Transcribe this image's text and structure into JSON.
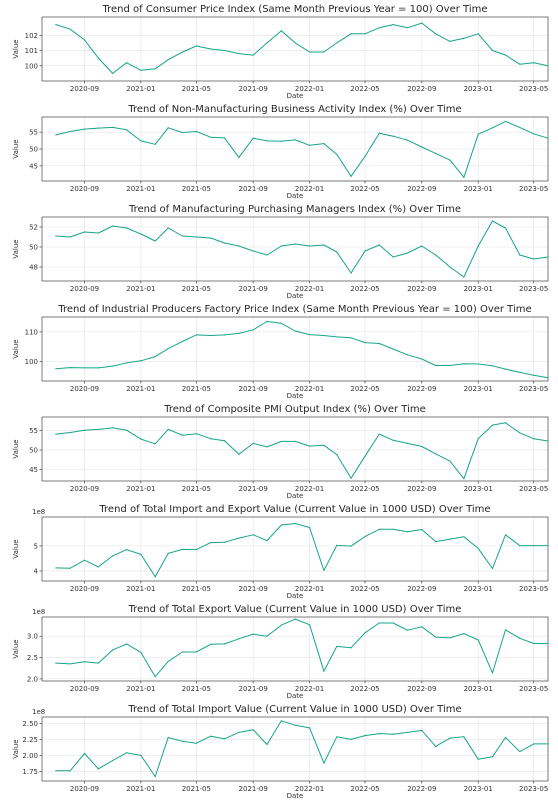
{
  "style": {
    "line_color": "#17a589",
    "grid_color": "#e3e3e3"
  },
  "chart_data": [
    {
      "type": "line",
      "title": "Trend of Consumer Price Index (Same Month Previous Year = 100) Over Time",
      "xlabel": "Date",
      "ylabel": "Value",
      "grid": true,
      "xlim": [
        "2020-06-01",
        "2023-06-01"
      ],
      "ylim": [
        99.0,
        103.2
      ],
      "yticks": [
        100,
        101,
        102
      ],
      "ytick_labels": [
        "100",
        "101",
        "102"
      ],
      "xticks": [
        "2020-09-01",
        "2021-01-01",
        "2021-05-01",
        "2021-09-01",
        "2022-01-01",
        "2022-05-01",
        "2022-09-01",
        "2023-01-01",
        "2023-05-01"
      ],
      "xtick_labels": [
        "2020-09",
        "2021-01",
        "2021-05",
        "2021-09",
        "2022-01",
        "2022-05",
        "2022-09",
        "2023-01",
        "2023-05"
      ],
      "axis_multiplier": "",
      "x": [
        "2020-07",
        "2020-08",
        "2020-09",
        "2020-10",
        "2020-11",
        "2020-12",
        "2021-01",
        "2021-02",
        "2021-03",
        "2021-04",
        "2021-05",
        "2021-06",
        "2021-07",
        "2021-08",
        "2021-09",
        "2021-10",
        "2021-11",
        "2021-12",
        "2022-01",
        "2022-02",
        "2022-03",
        "2022-04",
        "2022-05",
        "2022-06",
        "2022-07",
        "2022-08",
        "2022-09",
        "2022-10",
        "2022-11",
        "2022-12",
        "2023-01",
        "2023-02",
        "2023-03",
        "2023-04",
        "2023-05",
        "2023-06"
      ],
      "values": [
        102.7,
        102.4,
        101.7,
        100.5,
        99.5,
        100.2,
        99.7,
        99.8,
        100.4,
        100.9,
        101.3,
        101.1,
        101.0,
        100.8,
        100.7,
        101.5,
        102.3,
        101.5,
        100.9,
        100.9,
        101.5,
        102.1,
        102.1,
        102.5,
        102.7,
        102.5,
        102.8,
        102.1,
        101.6,
        101.8,
        102.1,
        101.0,
        100.7,
        100.1,
        100.2,
        100.0
      ]
    },
    {
      "type": "line",
      "title": "Trend of Non-Manufacturing Business Activity Index (%) Over Time",
      "xlabel": "Date",
      "ylabel": "Value",
      "grid": true,
      "xlim": [
        "2020-06-01",
        "2023-06-01"
      ],
      "ylim": [
        40.5,
        59.5
      ],
      "yticks": [
        45,
        50,
        55
      ],
      "ytick_labels": [
        "45",
        "50",
        "55"
      ],
      "xticks": [
        "2020-09-01",
        "2021-01-01",
        "2021-05-01",
        "2021-09-01",
        "2022-01-01",
        "2022-05-01",
        "2022-09-01",
        "2023-01-01",
        "2023-05-01"
      ],
      "xtick_labels": [
        "2020-09",
        "2021-01",
        "2021-05",
        "2021-09",
        "2022-01",
        "2022-05",
        "2022-09",
        "2023-01",
        "2023-05"
      ],
      "axis_multiplier": "",
      "x": [
        "2020-07",
        "2020-08",
        "2020-09",
        "2020-10",
        "2020-11",
        "2020-12",
        "2021-01",
        "2021-02",
        "2021-03",
        "2021-04",
        "2021-05",
        "2021-06",
        "2021-07",
        "2021-08",
        "2021-09",
        "2021-10",
        "2021-11",
        "2021-12",
        "2022-01",
        "2022-02",
        "2022-03",
        "2022-04",
        "2022-05",
        "2022-06",
        "2022-07",
        "2022-08",
        "2022-09",
        "2022-10",
        "2022-11",
        "2022-12",
        "2023-01",
        "2023-02",
        "2023-03",
        "2023-04",
        "2023-05",
        "2023-06"
      ],
      "values": [
        54.2,
        55.2,
        55.9,
        56.2,
        56.4,
        55.7,
        52.4,
        51.4,
        56.3,
        54.9,
        55.2,
        53.5,
        53.3,
        47.5,
        53.2,
        52.4,
        52.3,
        52.7,
        51.1,
        51.6,
        48.4,
        41.9,
        47.8,
        54.7,
        53.8,
        52.6,
        50.6,
        48.7,
        46.7,
        41.6,
        54.4,
        56.3,
        58.2,
        56.4,
        54.5,
        53.2
      ]
    },
    {
      "type": "line",
      "title": "Trend of Manufacturing Purchasing Managers Index (%) Over Time",
      "xlabel": "Date",
      "ylabel": "Value",
      "grid": true,
      "xlim": [
        "2020-06-01",
        "2023-06-01"
      ],
      "ylim": [
        46.6,
        53.0
      ],
      "yticks": [
        48,
        50,
        52
      ],
      "ytick_labels": [
        "48",
        "50",
        "52"
      ],
      "xticks": [
        "2020-09-01",
        "2021-01-01",
        "2021-05-01",
        "2021-09-01",
        "2022-01-01",
        "2022-05-01",
        "2022-09-01",
        "2023-01-01",
        "2023-05-01"
      ],
      "xtick_labels": [
        "2020-09",
        "2021-01",
        "2021-05",
        "2021-09",
        "2022-01",
        "2022-05",
        "2022-09",
        "2023-01",
        "2023-05"
      ],
      "axis_multiplier": "",
      "x": [
        "2020-07",
        "2020-08",
        "2020-09",
        "2020-10",
        "2020-11",
        "2020-12",
        "2021-01",
        "2021-02",
        "2021-03",
        "2021-04",
        "2021-05",
        "2021-06",
        "2021-07",
        "2021-08",
        "2021-09",
        "2021-10",
        "2021-11",
        "2021-12",
        "2022-01",
        "2022-02",
        "2022-03",
        "2022-04",
        "2022-05",
        "2022-06",
        "2022-07",
        "2022-08",
        "2022-09",
        "2022-10",
        "2022-11",
        "2022-12",
        "2023-01",
        "2023-02",
        "2023-03",
        "2023-04",
        "2023-05",
        "2023-06"
      ],
      "values": [
        51.1,
        51.0,
        51.5,
        51.4,
        52.1,
        51.9,
        51.3,
        50.6,
        51.9,
        51.1,
        51.0,
        50.9,
        50.4,
        50.1,
        49.6,
        49.2,
        50.1,
        50.3,
        50.1,
        50.2,
        49.5,
        47.4,
        49.6,
        50.2,
        49.0,
        49.4,
        50.1,
        49.2,
        48.0,
        47.0,
        50.1,
        52.6,
        51.9,
        49.2,
        48.8,
        49.0
      ]
    },
    {
      "type": "line",
      "title": "Trend of Industrial Producers Factory Price Index (Same Month Previous Year = 100) Over Time",
      "xlabel": "Date",
      "ylabel": "Value",
      "grid": true,
      "xlim": [
        "2020-06-01",
        "2023-06-01"
      ],
      "ylim": [
        93.5,
        115.0
      ],
      "yticks": [
        100,
        110
      ],
      "ytick_labels": [
        "100",
        "110"
      ],
      "xticks": [
        "2020-09-01",
        "2021-01-01",
        "2021-05-01",
        "2021-09-01",
        "2022-01-01",
        "2022-05-01",
        "2022-09-01",
        "2023-01-01",
        "2023-05-01"
      ],
      "xtick_labels": [
        "2020-09",
        "2021-01",
        "2021-05",
        "2021-09",
        "2022-01",
        "2022-05",
        "2022-09",
        "2023-01",
        "2023-05"
      ],
      "axis_multiplier": "",
      "x": [
        "2020-07",
        "2020-08",
        "2020-09",
        "2020-10",
        "2020-11",
        "2020-12",
        "2021-01",
        "2021-02",
        "2021-03",
        "2021-04",
        "2021-05",
        "2021-06",
        "2021-07",
        "2021-08",
        "2021-09",
        "2021-10",
        "2021-11",
        "2021-12",
        "2022-01",
        "2022-02",
        "2022-03",
        "2022-04",
        "2022-05",
        "2022-06",
        "2022-07",
        "2022-08",
        "2022-09",
        "2022-10",
        "2022-11",
        "2022-12",
        "2023-01",
        "2023-02",
        "2023-03",
        "2023-04",
        "2023-05",
        "2023-06"
      ],
      "values": [
        97.6,
        98.0,
        97.9,
        97.9,
        98.5,
        99.6,
        100.3,
        101.7,
        104.4,
        106.8,
        109.0,
        108.8,
        109.0,
        109.5,
        110.7,
        113.5,
        112.9,
        110.3,
        109.1,
        108.8,
        108.3,
        108.0,
        106.4,
        106.1,
        104.2,
        102.3,
        100.9,
        98.7,
        98.7,
        99.3,
        99.2,
        98.6,
        97.5,
        96.4,
        95.4,
        94.6
      ]
    },
    {
      "type": "line",
      "title": "Trend of Composite PMI Output Index (%) Over Time",
      "xlabel": "Date",
      "ylabel": "Value",
      "grid": true,
      "xlim": [
        "2020-06-01",
        "2023-06-01"
      ],
      "ylim": [
        42.0,
        58.5
      ],
      "yticks": [
        45,
        50,
        55
      ],
      "ytick_labels": [
        "45",
        "50",
        "55"
      ],
      "xticks": [
        "2020-09-01",
        "2021-01-01",
        "2021-05-01",
        "2021-09-01",
        "2022-01-01",
        "2022-05-01",
        "2022-09-01",
        "2023-01-01",
        "2023-05-01"
      ],
      "xtick_labels": [
        "2020-09",
        "2021-01",
        "2021-05",
        "2021-09",
        "2022-01",
        "2022-05",
        "2022-09",
        "2023-01",
        "2023-05"
      ],
      "axis_multiplier": "",
      "x": [
        "2020-07",
        "2020-08",
        "2020-09",
        "2020-10",
        "2020-11",
        "2020-12",
        "2021-01",
        "2021-02",
        "2021-03",
        "2021-04",
        "2021-05",
        "2021-06",
        "2021-07",
        "2021-08",
        "2021-09",
        "2021-10",
        "2021-11",
        "2021-12",
        "2022-01",
        "2022-02",
        "2022-03",
        "2022-04",
        "2022-05",
        "2022-06",
        "2022-07",
        "2022-08",
        "2022-09",
        "2022-10",
        "2022-11",
        "2022-12",
        "2023-01",
        "2023-02",
        "2023-03",
        "2023-04",
        "2023-05",
        "2023-06"
      ],
      "values": [
        54.1,
        54.5,
        55.1,
        55.3,
        55.7,
        55.1,
        52.8,
        51.6,
        55.3,
        53.8,
        54.2,
        52.9,
        52.4,
        48.9,
        51.7,
        50.8,
        52.2,
        52.2,
        51.0,
        51.2,
        48.8,
        42.7,
        48.4,
        54.1,
        52.5,
        51.7,
        50.9,
        49.0,
        47.1,
        42.6,
        52.9,
        56.4,
        57.0,
        54.4,
        52.9,
        52.3
      ]
    },
    {
      "type": "line",
      "title": "Trend of Total Import and Export Value (Current Value in 1000 USD) Over Time",
      "xlabel": "Date",
      "ylabel": "Value",
      "grid": true,
      "xlim": [
        "2020-06-01",
        "2023-06-01"
      ],
      "ylim": [
        360000000,
        615000000
      ],
      "yticks": [
        400000000,
        500000000
      ],
      "ytick_labels": [
        "4",
        "5"
      ],
      "xticks": [
        "2020-09-01",
        "2021-01-01",
        "2021-05-01",
        "2021-09-01",
        "2022-01-01",
        "2022-05-01",
        "2022-09-01",
        "2023-01-01",
        "2023-05-01"
      ],
      "xtick_labels": [
        "2020-09",
        "2021-01",
        "2021-05",
        "2021-09",
        "2022-01",
        "2022-05",
        "2022-09",
        "2023-01",
        "2023-05"
      ],
      "axis_multiplier": "1e8",
      "x": [
        "2020-07",
        "2020-08",
        "2020-09",
        "2020-10",
        "2020-11",
        "2020-12",
        "2021-01",
        "2021-02",
        "2021-03",
        "2021-04",
        "2021-05",
        "2021-06",
        "2021-07",
        "2021-08",
        "2021-09",
        "2021-10",
        "2021-11",
        "2021-12",
        "2022-01",
        "2022-02",
        "2022-03",
        "2022-04",
        "2022-05",
        "2022-06",
        "2022-07",
        "2022-08",
        "2022-09",
        "2022-10",
        "2022-11",
        "2022-12",
        "2023-01",
        "2023-02",
        "2023-03",
        "2023-04",
        "2023-05",
        "2023-06"
      ],
      "values": [
        412000000,
        411000000,
        443000000,
        416000000,
        460000000,
        485000000,
        466000000,
        377000000,
        470000000,
        486000000,
        485000000,
        513000000,
        514000000,
        531000000,
        544000000,
        521000000,
        583000000,
        589000000,
        573000000,
        402000000,
        502000000,
        499000000,
        537000000,
        566000000,
        566000000,
        556000000,
        565000000,
        517000000,
        527000000,
        536000000,
        490000000,
        410000000,
        544000000,
        501000000,
        501000000,
        501000000
      ]
    },
    {
      "type": "line",
      "title": "Trend of Total Export Value (Current Value in 1000 USD) Over Time",
      "xlabel": "Date",
      "ylabel": "Value",
      "grid": true,
      "xlim": [
        "2020-06-01",
        "2023-06-01"
      ],
      "ylim": [
        195000000,
        345000000
      ],
      "yticks": [
        200000000,
        250000000,
        300000000
      ],
      "ytick_labels": [
        "2.0",
        "2.5",
        "3.0"
      ],
      "xticks": [
        "2020-09-01",
        "2021-01-01",
        "2021-05-01",
        "2021-09-01",
        "2022-01-01",
        "2022-05-01",
        "2022-09-01",
        "2023-01-01",
        "2023-05-01"
      ],
      "xtick_labels": [
        "2020-09",
        "2021-01",
        "2021-05",
        "2021-09",
        "2022-01",
        "2022-05",
        "2022-09",
        "2023-01",
        "2023-05"
      ],
      "axis_multiplier": "1e8",
      "x": [
        "2020-07",
        "2020-08",
        "2020-09",
        "2020-10",
        "2020-11",
        "2020-12",
        "2021-01",
        "2021-02",
        "2021-03",
        "2021-04",
        "2021-05",
        "2021-06",
        "2021-07",
        "2021-08",
        "2021-09",
        "2021-10",
        "2021-11",
        "2021-12",
        "2022-01",
        "2022-02",
        "2022-03",
        "2022-04",
        "2022-05",
        "2022-06",
        "2022-07",
        "2022-08",
        "2022-09",
        "2022-10",
        "2022-11",
        "2022-12",
        "2023-01",
        "2023-02",
        "2023-03",
        "2023-04",
        "2023-05",
        "2023-06"
      ],
      "values": [
        237000000,
        235000000,
        240000000,
        237000000,
        268000000,
        282000000,
        262000000,
        205000000,
        241000000,
        263000000,
        263000000,
        281000000,
        282000000,
        294000000,
        305000000,
        300000000,
        326000000,
        340000000,
        327000000,
        218000000,
        276000000,
        273000000,
        308000000,
        331000000,
        331000000,
        314000000,
        322000000,
        298000000,
        296000000,
        306000000,
        291000000,
        214000000,
        315000000,
        295000000,
        283000000,
        283000000
      ]
    },
    {
      "type": "line",
      "title": "Trend of Total Import Value (Current Value in 1000 USD) Over Time",
      "xlabel": "Date",
      "ylabel": "Value",
      "grid": true,
      "xlim": [
        "2020-06-01",
        "2023-06-01"
      ],
      "ylim": [
        160000000,
        260000000
      ],
      "yticks": [
        175000000,
        200000000,
        225000000,
        250000000
      ],
      "ytick_labels": [
        "1.75",
        "2.00",
        "2.25",
        "2.50"
      ],
      "xticks": [
        "2020-09-01",
        "2021-01-01",
        "2021-05-01",
        "2021-09-01",
        "2022-01-01",
        "2022-05-01",
        "2022-09-01",
        "2023-01-01",
        "2023-05-01"
      ],
      "xtick_labels": [
        "2020-09",
        "2021-01",
        "2021-05",
        "2021-09",
        "2022-01",
        "2022-05",
        "2022-09",
        "2023-01",
        "2023-05"
      ],
      "axis_multiplier": "1e8",
      "x": [
        "2020-07",
        "2020-08",
        "2020-09",
        "2020-10",
        "2020-11",
        "2020-12",
        "2021-01",
        "2021-02",
        "2021-03",
        "2021-04",
        "2021-05",
        "2021-06",
        "2021-07",
        "2021-08",
        "2021-09",
        "2021-10",
        "2021-11",
        "2021-12",
        "2022-01",
        "2022-02",
        "2022-03",
        "2022-04",
        "2022-05",
        "2022-06",
        "2022-07",
        "2022-08",
        "2022-09",
        "2022-10",
        "2022-11",
        "2022-12",
        "2023-01",
        "2023-02",
        "2023-03",
        "2023-04",
        "2023-05",
        "2023-06"
      ],
      "values": [
        176000000,
        176000000,
        203000000,
        179000000,
        192000000,
        204000000,
        200000000,
        167000000,
        228000000,
        222000000,
        219000000,
        230000000,
        226000000,
        236000000,
        240000000,
        217000000,
        254000000,
        247000000,
        243000000,
        188000000,
        229000000,
        225000000,
        231000000,
        234000000,
        233000000,
        236000000,
        239000000,
        214000000,
        227000000,
        229000000,
        194000000,
        198000000,
        228000000,
        206000000,
        218000000,
        218000000
      ]
    }
  ]
}
